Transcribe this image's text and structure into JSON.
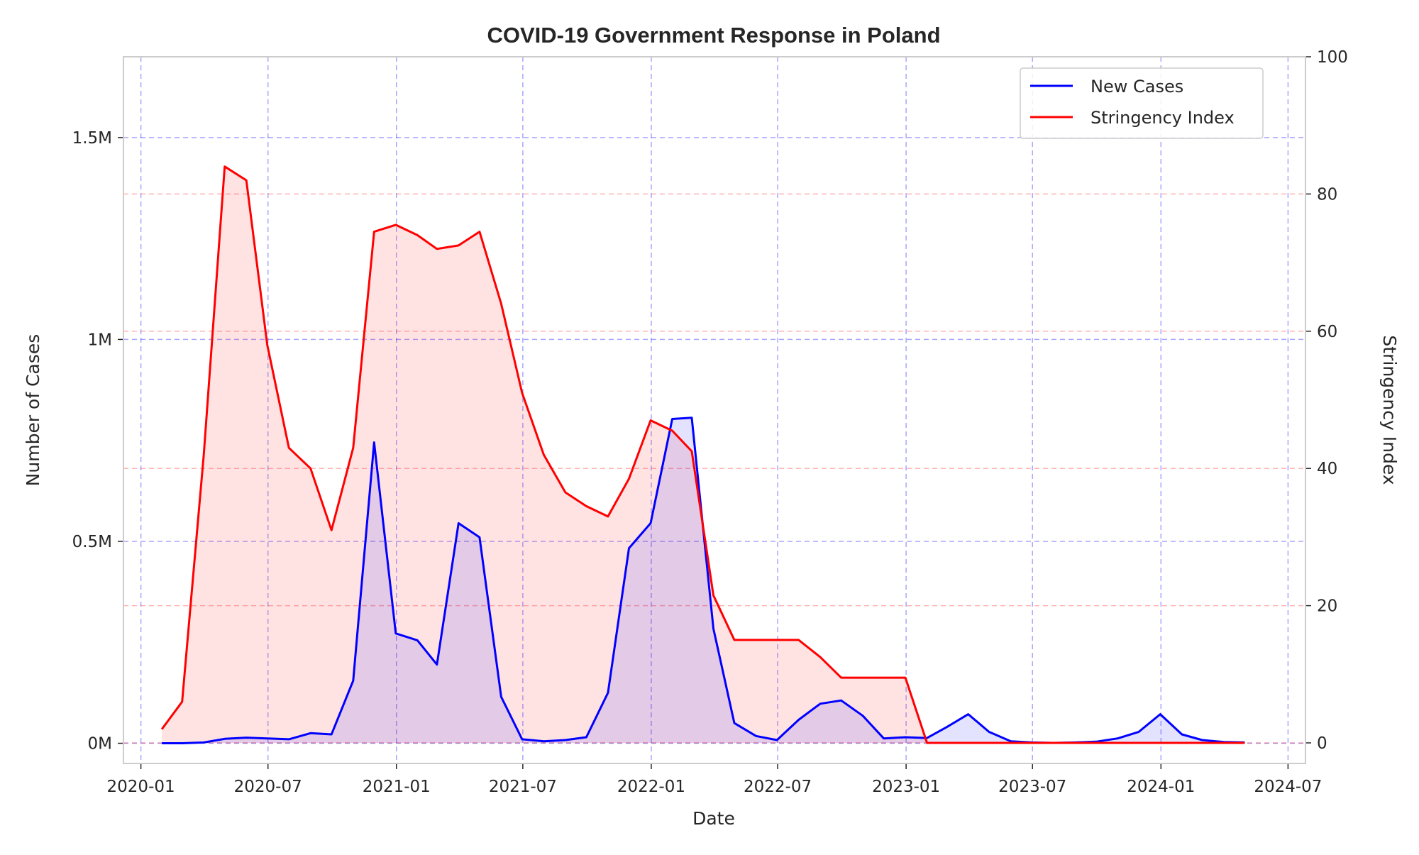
{
  "chart_data": {
    "type": "line",
    "title": "COVID-19 Government Response in Poland",
    "xlabel": "Date",
    "ylabel": "Number of Cases",
    "ylabel_right": "Stringency Index",
    "x_ticks": [
      "2020-01",
      "2020-07",
      "2021-01",
      "2021-07",
      "2022-01",
      "2022-07",
      "2023-01",
      "2023-07",
      "2024-01",
      "2024-07"
    ],
    "y_ticks": [
      "0M",
      "0.5M",
      "1M",
      "1.5M"
    ],
    "y_ticks_right": [
      "0",
      "20",
      "40",
      "60",
      "80",
      "100"
    ],
    "ylim": [
      -50000,
      1700000
    ],
    "ylim_right": [
      -3,
      100
    ],
    "xlim": [
      "2019-12-07",
      "2024-07-26"
    ],
    "grid": true,
    "legend_position": "upper right",
    "x": [
      "2020-01-31",
      "2020-02-29",
      "2020-03-31",
      "2020-04-30",
      "2020-05-31",
      "2020-06-30",
      "2020-07-31",
      "2020-08-31",
      "2020-09-30",
      "2020-10-31",
      "2020-11-30",
      "2020-12-31",
      "2021-01-31",
      "2021-02-28",
      "2021-03-31",
      "2021-04-30",
      "2021-05-31",
      "2021-06-30",
      "2021-07-31",
      "2021-08-31",
      "2021-09-30",
      "2021-10-31",
      "2021-11-30",
      "2021-12-31",
      "2022-01-31",
      "2022-02-28",
      "2022-03-31",
      "2022-04-30",
      "2022-05-31",
      "2022-06-30",
      "2022-07-31",
      "2022-08-31",
      "2022-09-30",
      "2022-10-31",
      "2022-11-30",
      "2022-12-31",
      "2023-01-31",
      "2023-02-28",
      "2023-03-31",
      "2023-04-30",
      "2023-05-31",
      "2023-06-30",
      "2023-07-31",
      "2023-08-31",
      "2023-09-30",
      "2023-10-31",
      "2023-11-30",
      "2023-12-31",
      "2024-01-31",
      "2024-02-29",
      "2024-03-31",
      "2024-04-30"
    ],
    "series": [
      {
        "name": "New Cases",
        "axis": "left",
        "color": "#0000ff",
        "values": [
          0,
          0,
          2000,
          11000,
          14000,
          12000,
          10000,
          25000,
          22000,
          155000,
          745000,
          272000,
          255000,
          195000,
          545000,
          510000,
          115000,
          10000,
          5000,
          8000,
          15000,
          125000,
          483000,
          545000,
          803000,
          806000,
          284000,
          50000,
          18000,
          8000,
          58000,
          98000,
          106000,
          68000,
          12000,
          15000,
          13000,
          40000,
          72000,
          28000,
          5000,
          2000,
          1000,
          2000,
          4000,
          12000,
          28000,
          72000,
          22000,
          8000,
          3000,
          2000
        ]
      },
      {
        "name": "Stringency Index",
        "axis": "right",
        "color": "#ff0000",
        "values": [
          2,
          6,
          42,
          84,
          82,
          58,
          43,
          40,
          31,
          43,
          74.5,
          75.5,
          74,
          72,
          72.5,
          74.5,
          64,
          51,
          42,
          36.5,
          34.5,
          33,
          38.5,
          47,
          45.5,
          42.5,
          21.5,
          15,
          15,
          15,
          15,
          12.5,
          9.5,
          9.5,
          9.5,
          9.5,
          0,
          0,
          0,
          0,
          0,
          0,
          0,
          0,
          0,
          0,
          0,
          0,
          0,
          0,
          0,
          0
        ]
      }
    ],
    "colors": {
      "cases_fill": "#0000ff",
      "stringency_fill": "#ff0000",
      "grid_x": "#0000ff",
      "grid_left_y": "#0000ff",
      "grid_right_y": "#ff0000"
    }
  }
}
